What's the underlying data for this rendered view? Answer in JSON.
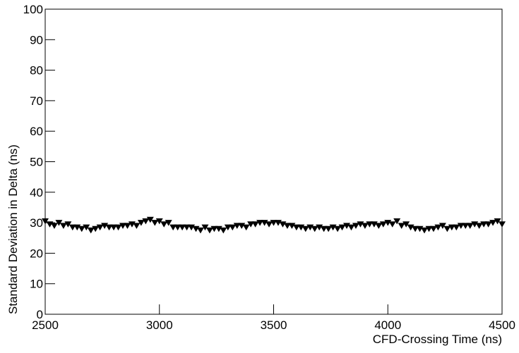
{
  "chart_data": {
    "type": "scatter",
    "x_label": "CFD-Crossing Time (ns)",
    "y_label": "Standard Deviation in Delta (ns)",
    "x": [
      2500,
      2520,
      2540,
      2560,
      2580,
      2600,
      2620,
      2640,
      2660,
      2680,
      2700,
      2720,
      2740,
      2760,
      2780,
      2800,
      2820,
      2840,
      2860,
      2880,
      2900,
      2920,
      2940,
      2960,
      2980,
      3000,
      3020,
      3040,
      3060,
      3080,
      3100,
      3120,
      3140,
      3160,
      3180,
      3200,
      3220,
      3240,
      3260,
      3280,
      3300,
      3320,
      3340,
      3360,
      3380,
      3400,
      3420,
      3440,
      3460,
      3480,
      3500,
      3520,
      3540,
      3560,
      3580,
      3600,
      3620,
      3640,
      3660,
      3680,
      3700,
      3720,
      3740,
      3760,
      3780,
      3800,
      3820,
      3840,
      3860,
      3880,
      3900,
      3920,
      3940,
      3960,
      3980,
      4000,
      4020,
      4040,
      4060,
      4080,
      4100,
      4120,
      4140,
      4160,
      4180,
      4200,
      4220,
      4240,
      4260,
      4280,
      4300,
      4320,
      4340,
      4360,
      4380,
      4400,
      4420,
      4440,
      4460,
      4480,
      4500
    ],
    "values": [
      30.5,
      29.5,
      29,
      30,
      29,
      29.5,
      28.5,
      28.5,
      28,
      28.5,
      27.5,
      28,
      28.5,
      29,
      28.5,
      28.5,
      28.5,
      29,
      29,
      29.5,
      29,
      30,
      30.5,
      31,
      30,
      30.5,
      29.5,
      30,
      28.5,
      28.5,
      28.5,
      28.5,
      28.5,
      28,
      27.5,
      28.5,
      27.5,
      28,
      28,
      27.5,
      28.5,
      28.5,
      29,
      29,
      28.5,
      29.5,
      29.5,
      30,
      30,
      29.5,
      30,
      30,
      29.5,
      29,
      29,
      28.5,
      28.5,
      28,
      28.5,
      28,
      28.5,
      28,
      28,
      28.5,
      28,
      28.5,
      29,
      28.5,
      29,
      29.5,
      29,
      29.5,
      29.5,
      29,
      29.5,
      30,
      29.5,
      30.5,
      29,
      29.5,
      28.5,
      28,
      28,
      27.5,
      28,
      28,
      28.5,
      29,
      28,
      28.5,
      28.5,
      29,
      29,
      29,
      29.5,
      29,
      29.5,
      29.5,
      30,
      30.5,
      29.5
    ],
    "color": "#000000",
    "xlim": [
      2500,
      4500
    ],
    "xticks": [
      2500,
      3000,
      3500,
      4000,
      4500
    ],
    "ylim": [
      0,
      100
    ],
    "yticks": [
      0,
      10,
      20,
      30,
      40,
      50,
      60,
      70,
      80,
      90,
      100
    ]
  }
}
